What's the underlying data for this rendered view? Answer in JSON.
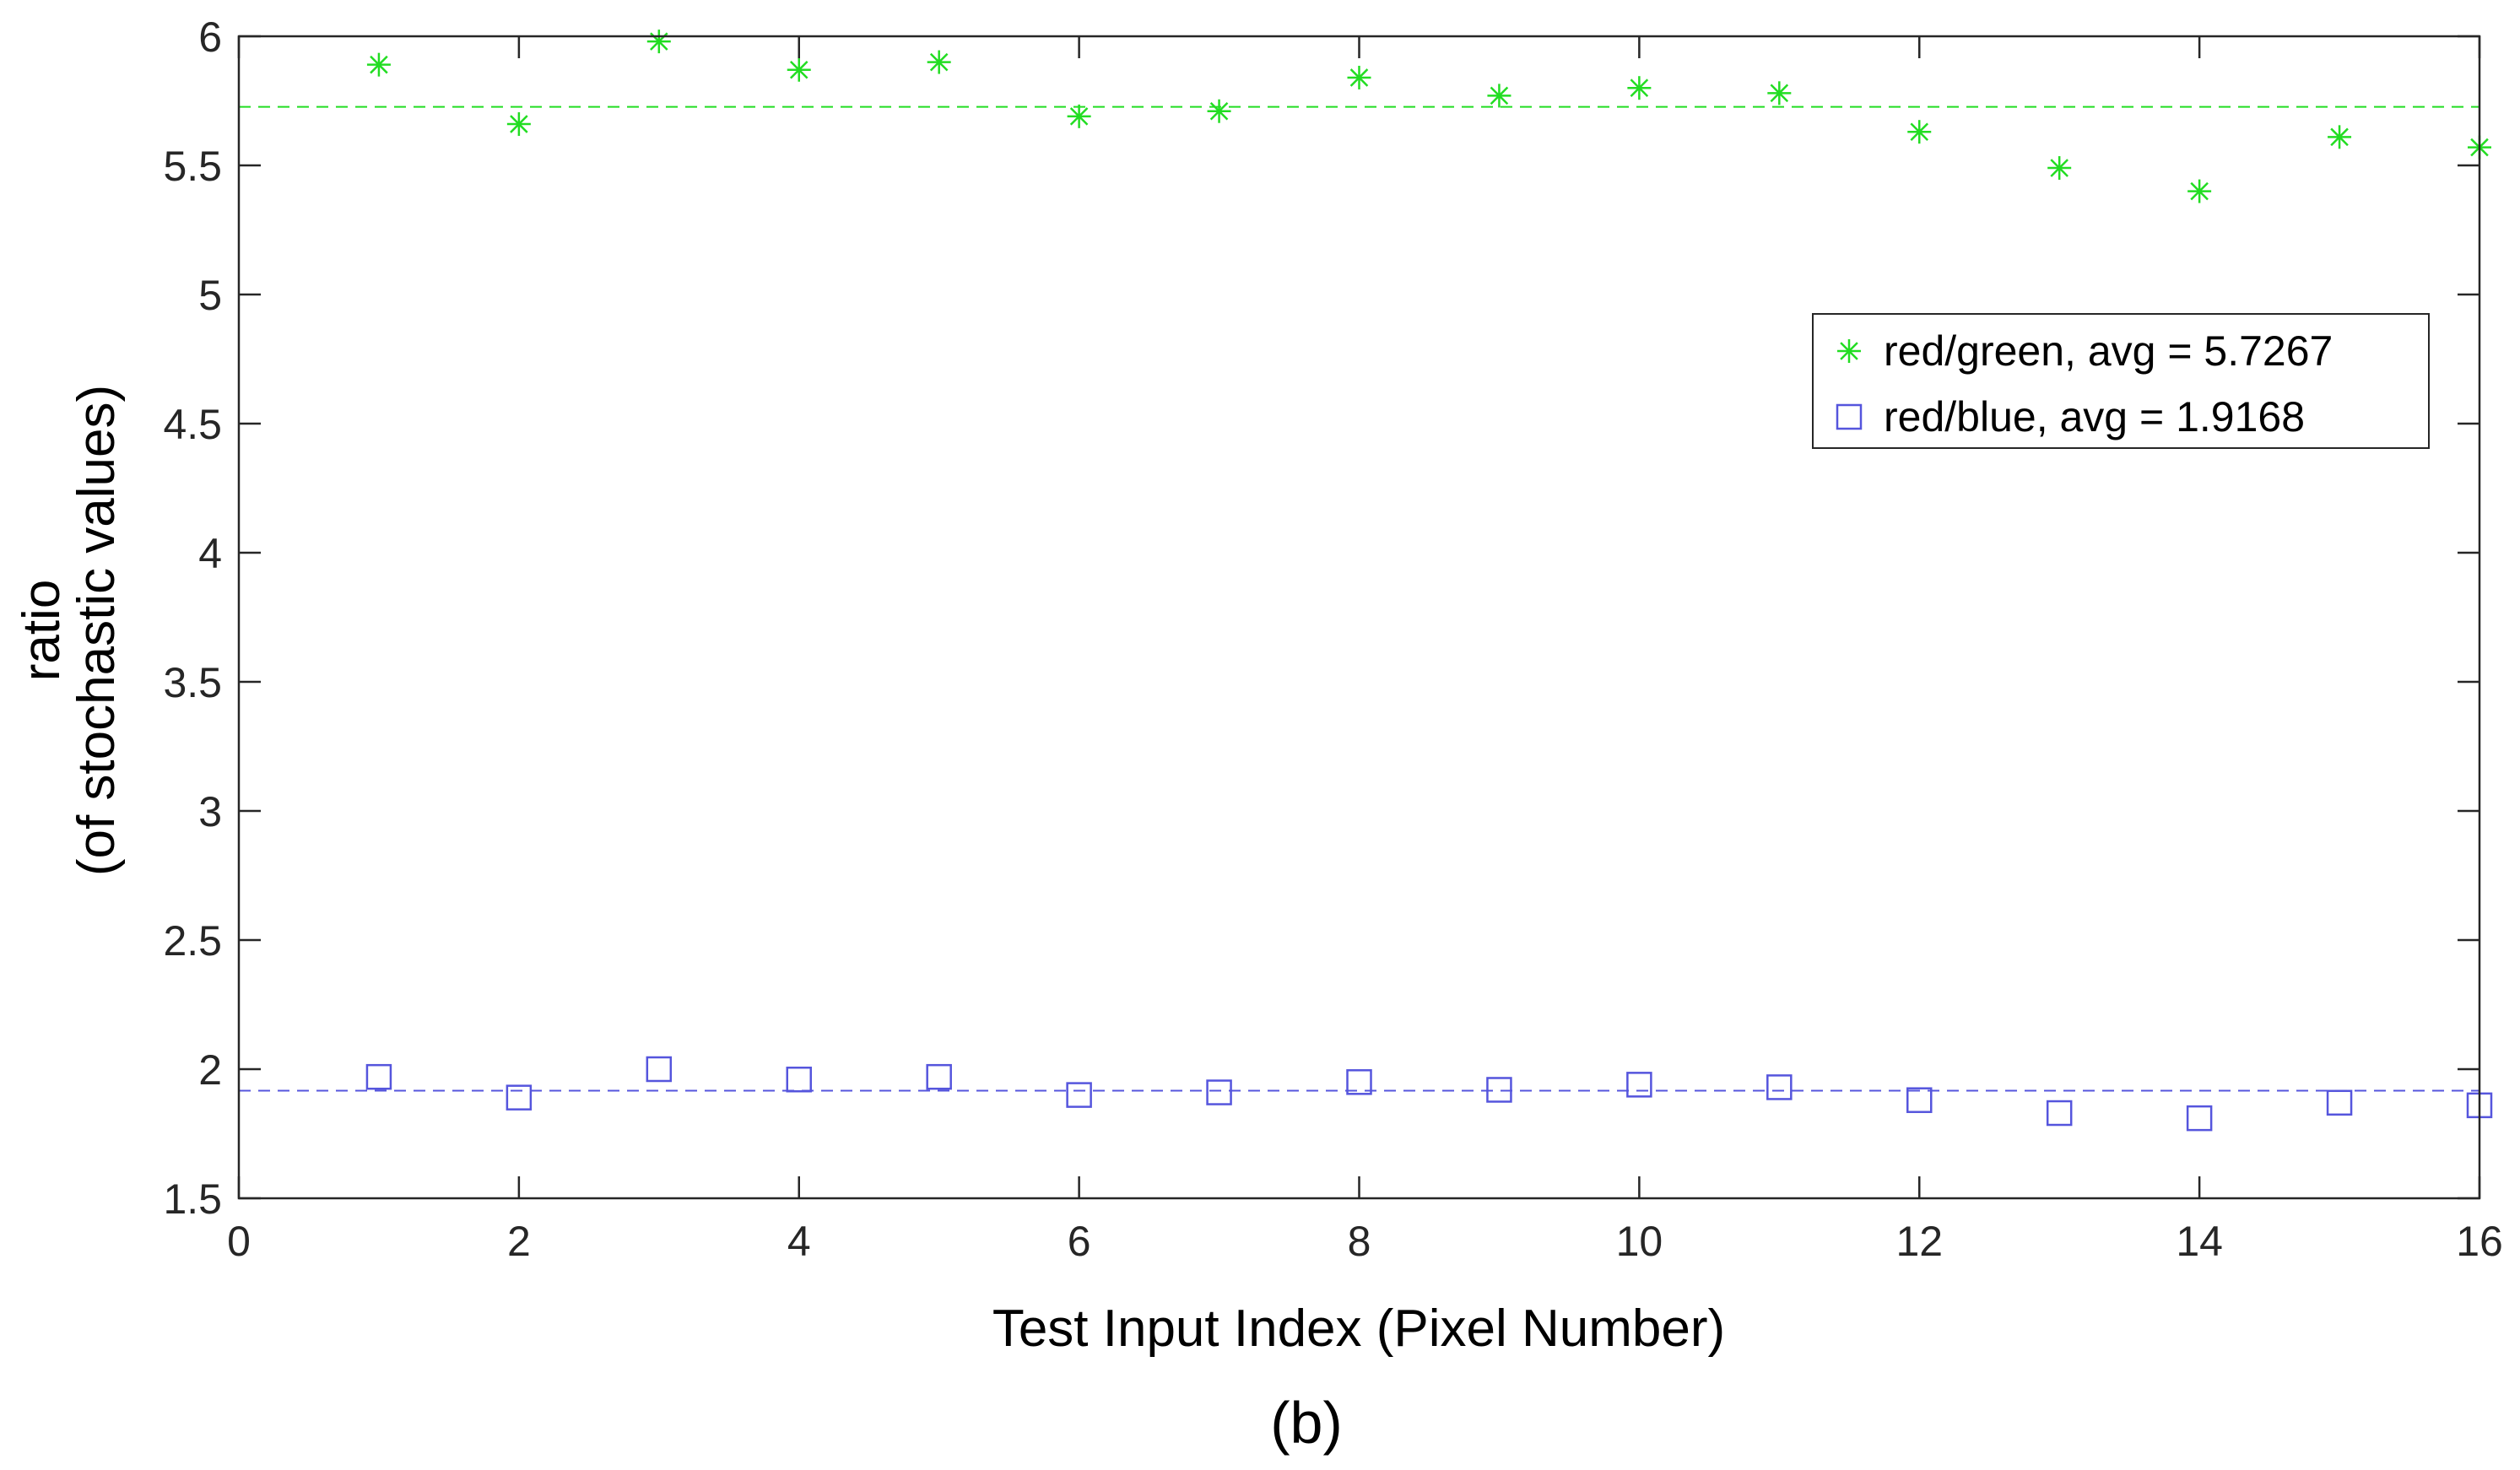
{
  "chart_data": {
    "type": "scatter",
    "xlabel": "Test Input Index (Pixel Number)",
    "ylabel_lines": [
      "ratio",
      "(of stochastic values)"
    ],
    "caption": "(b)",
    "xlim": [
      0,
      16
    ],
    "ylim": [
      1.5,
      6
    ],
    "xticks": [
      0,
      2,
      4,
      6,
      8,
      10,
      12,
      14,
      16
    ],
    "yticks": [
      1.5,
      2,
      2.5,
      3,
      3.5,
      4,
      4.5,
      5,
      5.5,
      6
    ],
    "grid": false,
    "legend_position": "upper-right",
    "series": [
      {
        "name": "red/green, avg = 5.7267",
        "marker": "asterisk",
        "color": "#22dd22",
        "average": 5.7267,
        "x": [
          1,
          2,
          3,
          4,
          5,
          6,
          7,
          8,
          9,
          10,
          11,
          12,
          13,
          14,
          15,
          16
        ],
        "y": [
          5.89,
          5.66,
          5.98,
          5.87,
          5.9,
          5.69,
          5.71,
          5.84,
          5.77,
          5.8,
          5.78,
          5.63,
          5.49,
          5.4,
          5.61,
          5.57
        ]
      },
      {
        "name": "red/blue, avg = 1.9168",
        "marker": "square",
        "color": "#5555dd",
        "average": 1.9168,
        "x": [
          1,
          2,
          3,
          4,
          5,
          6,
          7,
          8,
          9,
          10,
          11,
          12,
          13,
          14,
          15,
          16
        ],
        "y": [
          1.97,
          1.89,
          2.0,
          1.96,
          1.97,
          1.9,
          1.91,
          1.95,
          1.92,
          1.94,
          1.93,
          1.88,
          1.83,
          1.81,
          1.87,
          1.86
        ]
      }
    ]
  }
}
